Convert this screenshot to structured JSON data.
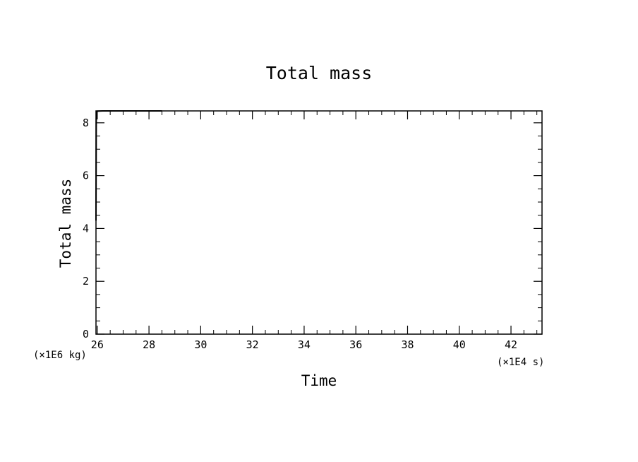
{
  "chart_data": {
    "type": "line",
    "title": "Total mass",
    "xlabel": "Time",
    "ylabel": "Total mass",
    "x_unit": "(×1E4 s)",
    "y_unit": "(×1E6 kg)",
    "xlim": [
      25.95,
      43.2
    ],
    "ylim": [
      0,
      8.45
    ],
    "x_ticks": [
      26,
      28,
      30,
      32,
      34,
      36,
      38,
      40,
      42
    ],
    "y_ticks": [
      0,
      2,
      4,
      6,
      8
    ],
    "x_minor_step": 0.5,
    "y_minor_step": 0.5,
    "grid": false,
    "colors": {
      "line": "#000000",
      "axes": "#000000",
      "background": "#ffffff"
    },
    "series": [
      {
        "x": [
          25.95,
          25.96,
          25.97,
          26.0,
          26.2,
          26.5,
          27.0,
          27.5,
          28.0,
          28.5
        ],
        "y": [
          4.3,
          8.1,
          8.42,
          8.44,
          8.45,
          8.45,
          8.45,
          8.45,
          8.45,
          8.45
        ]
      }
    ]
  }
}
